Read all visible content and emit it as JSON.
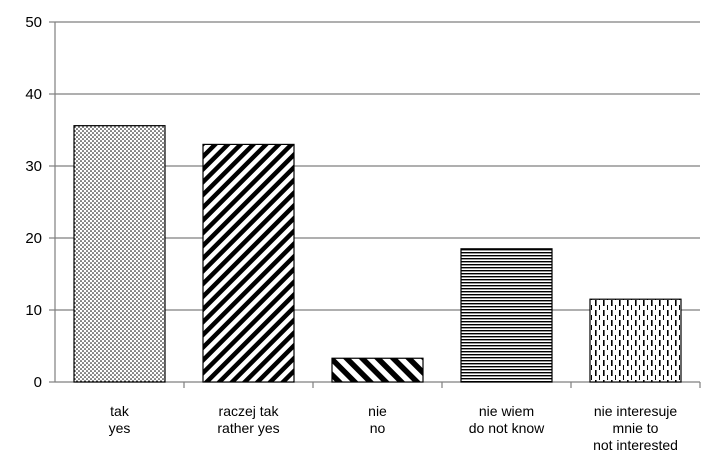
{
  "chart_data": {
    "type": "bar",
    "categories": [
      [
        "tak",
        "yes"
      ],
      [
        "raczej tak",
        "rather yes"
      ],
      [
        "nie",
        "no"
      ],
      [
        "nie wiem",
        "do not know"
      ],
      [
        "nie interesuje",
        "mnie to",
        "not interested"
      ]
    ],
    "values": [
      35.6,
      33.0,
      3.3,
      18.5,
      11.5
    ],
    "patterns": [
      "dots",
      "diagonal-stripes",
      "diagonal-stripes-wide",
      "horizontal-lines",
      "vertical-dashes"
    ],
    "ylim": [
      0,
      50
    ],
    "yticks": [
      0,
      10,
      20,
      30,
      40,
      50
    ],
    "grid": true,
    "title": "",
    "xlabel": "",
    "ylabel": "",
    "colors": {
      "bar_fill": "#ffffff",
      "pattern": "#000000",
      "grid": "#7f7f7f",
      "border": "#7f7f7f"
    }
  }
}
